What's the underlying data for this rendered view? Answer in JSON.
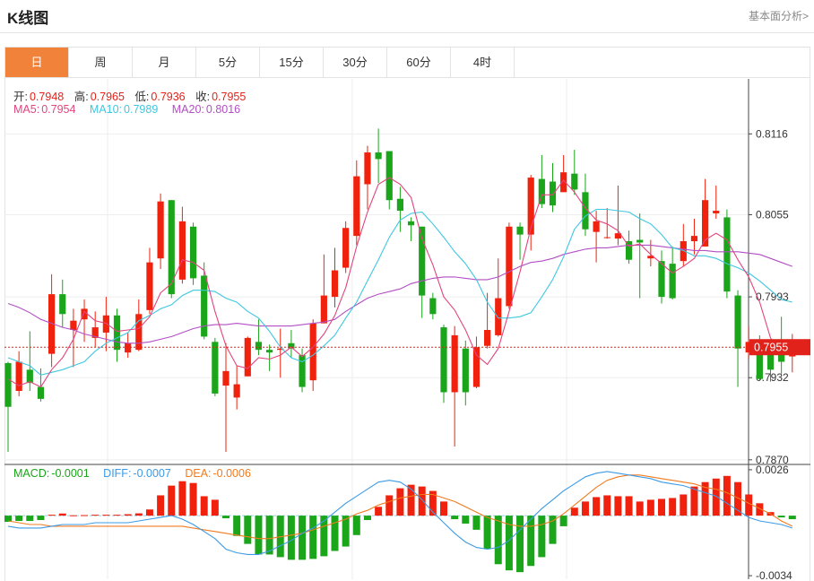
{
  "header": {
    "title": "K线图",
    "link": "基本面分析>"
  },
  "tabs": [
    "日",
    "周",
    "月",
    "5分",
    "15分",
    "30分",
    "60分",
    "4时"
  ],
  "active_tab": 0,
  "ohlc_legend": {
    "open_label": "开:",
    "open": "0.7948",
    "high_label": "高:",
    "high": "0.7965",
    "low_label": "低:",
    "low": "0.7936",
    "close_label": "收:",
    "close": "0.7955"
  },
  "ma_legend": {
    "ma5_label": "MA5:",
    "ma5": "0.7954",
    "ma10_label": "MA10:",
    "ma10": "0.7989",
    "ma20_label": "MA20:",
    "ma20": "0.8016"
  },
  "macd_legend": {
    "macd_label": "MACD:",
    "macd": "-0.0001",
    "diff_label": "DIFF:",
    "diff": "-0.0007",
    "dea_label": "DEA:",
    "dea": "-0.0006"
  },
  "colors": {
    "up": "#f0220e",
    "down": "#1aa51a",
    "ma5": "#e2457f",
    "ma10": "#3ec7e0",
    "ma20": "#b24fc4",
    "dea": "#f07b20",
    "diff": "#3c9be6",
    "accent": "#f0823a",
    "current": "#e0221a"
  },
  "chart_data": {
    "type": "candlestick",
    "price_axis": {
      "ticks": [
        0.8116,
        0.8055,
        0.7993,
        0.7932,
        0.787
      ],
      "ylim": [
        0.78665,
        0.81575
      ]
    },
    "current_price": 0.7955,
    "candles": [
      [
        0.7943,
        0.791,
        0.7944,
        0.7876
      ],
      [
        0.7922,
        0.7944,
        0.7952,
        0.7918
      ],
      [
        0.7938,
        0.7928,
        0.7967,
        0.7922
      ],
      [
        0.7925,
        0.7916,
        0.7939,
        0.7914
      ],
      [
        0.795,
        0.7995,
        0.801,
        0.794
      ],
      [
        0.7995,
        0.798,
        0.8006,
        0.797
      ],
      [
        0.7968,
        0.7975,
        0.7984,
        0.794
      ],
      [
        0.7976,
        0.7984,
        0.7991,
        0.7959
      ],
      [
        0.7962,
        0.797,
        0.7982,
        0.7955
      ],
      [
        0.7966,
        0.7979,
        0.7993,
        0.7952
      ],
      [
        0.7979,
        0.7953,
        0.7984,
        0.7944
      ],
      [
        0.7951,
        0.7958,
        0.7966,
        0.7947
      ],
      [
        0.7953,
        0.798,
        0.7991,
        0.7952
      ],
      [
        0.7983,
        0.8019,
        0.803,
        0.798
      ],
      [
        0.8022,
        0.8065,
        0.8071,
        0.8014
      ],
      [
        0.8066,
        0.7995,
        0.8066,
        0.7992
      ],
      [
        0.8006,
        0.805,
        0.8061,
        0.8003
      ],
      [
        0.8046,
        0.8007,
        0.8049,
        0.8002
      ],
      [
        0.8009,
        0.7963,
        0.8019,
        0.7961
      ],
      [
        0.7959,
        0.792,
        0.7962,
        0.7918
      ],
      [
        0.7926,
        0.7937,
        0.7958,
        0.7876
      ],
      [
        0.7917,
        0.7927,
        0.7941,
        0.7908
      ],
      [
        0.7933,
        0.7962,
        0.7963,
        0.7933
      ],
      [
        0.7959,
        0.7953,
        0.7976,
        0.7949
      ],
      [
        0.7953,
        0.7951,
        0.7957,
        0.7937
      ],
      [
        0.7953,
        0.7954,
        0.7969,
        0.7932
      ],
      [
        0.7958,
        0.7954,
        0.7968,
        0.7947
      ],
      [
        0.7949,
        0.7925,
        0.7954,
        0.7921
      ],
      [
        0.793,
        0.7973,
        0.7976,
        0.7922
      ],
      [
        0.7973,
        0.7994,
        0.8025,
        0.7973
      ],
      [
        0.7993,
        0.8013,
        0.803,
        0.7985
      ],
      [
        0.8015,
        0.8045,
        0.805,
        0.8011
      ],
      [
        0.8039,
        0.8084,
        0.8096,
        0.8032
      ],
      [
        0.8078,
        0.8102,
        0.8107,
        0.8059
      ],
      [
        0.8102,
        0.8097,
        0.812,
        0.8079
      ],
      [
        0.8103,
        0.8066,
        0.8103,
        0.8059
      ],
      [
        0.8067,
        0.8058,
        0.8076,
        0.8042
      ],
      [
        0.805,
        0.8047,
        0.8053,
        0.8035
      ],
      [
        0.8046,
        0.7994,
        0.8046,
        0.7977
      ],
      [
        0.7992,
        0.798,
        0.7996,
        0.7976
      ],
      [
        0.797,
        0.7921,
        0.7972,
        0.7913
      ],
      [
        0.7921,
        0.7964,
        0.7971,
        0.788
      ],
      [
        0.7954,
        0.7921,
        0.796,
        0.7911
      ],
      [
        0.7925,
        0.7955,
        0.7963,
        0.7924
      ],
      [
        0.7956,
        0.7968,
        0.7996,
        0.7954
      ],
      [
        0.7964,
        0.7992,
        0.8022,
        0.7963
      ],
      [
        0.7986,
        0.8046,
        0.8049,
        0.7984
      ],
      [
        0.8046,
        0.804,
        0.8049,
        0.8021
      ],
      [
        0.804,
        0.8083,
        0.8085,
        0.8028
      ],
      [
        0.8082,
        0.8063,
        0.81,
        0.806
      ],
      [
        0.808,
        0.8062,
        0.8094,
        0.8057
      ],
      [
        0.8072,
        0.8087,
        0.81,
        0.8073
      ],
      [
        0.8086,
        0.8074,
        0.8104,
        0.807
      ],
      [
        0.8072,
        0.8044,
        0.8086,
        0.8039
      ],
      [
        0.8042,
        0.805,
        0.8058,
        0.8019
      ],
      [
        0.8038,
        0.8038,
        0.806,
        0.8037
      ],
      [
        0.8037,
        0.8041,
        0.8077,
        0.8032
      ],
      [
        0.8035,
        0.8021,
        0.8043,
        0.8018
      ],
      [
        0.8036,
        0.8034,
        0.8056,
        0.7992
      ],
      [
        0.8022,
        0.8024,
        0.8036,
        0.8016
      ],
      [
        0.802,
        0.7993,
        0.8028,
        0.7988
      ],
      [
        0.8018,
        0.7992,
        0.8031,
        0.7991
      ],
      [
        0.802,
        0.8035,
        0.8048,
        0.8016
      ],
      [
        0.8035,
        0.8039,
        0.8052,
        0.8025
      ],
      [
        0.8031,
        0.8066,
        0.8082,
        0.8031
      ],
      [
        0.8056,
        0.8058,
        0.8077,
        0.8052
      ],
      [
        0.8053,
        0.7997,
        0.8059,
        0.7992
      ],
      [
        0.7994,
        0.7954,
        0.7998,
        0.7925
      ],
      [
        0.7951,
        0.7959,
        0.7971,
        0.7946
      ],
      [
        0.7953,
        0.7931,
        0.7964,
        0.793
      ],
      [
        0.796,
        0.7938,
        0.796,
        0.7929
      ],
      [
        0.7958,
        0.7944,
        0.7978,
        0.7935
      ],
      [
        0.7948,
        0.7955,
        0.7965,
        0.7936
      ]
    ],
    "ma5": [
      0.7931,
      0.7926,
      0.7929,
      0.7925,
      0.7938,
      0.7947,
      0.7961,
      0.7982,
      0.7975,
      0.7973,
      0.7967,
      0.7968,
      0.7969,
      0.7978,
      0.7996,
      0.8003,
      0.8021,
      0.8019,
      0.8013,
      0.7982,
      0.7956,
      0.7941,
      0.7939,
      0.7947,
      0.7946,
      0.7949,
      0.7955,
      0.7948,
      0.7955,
      0.7965,
      0.7979,
      0.8,
      0.8031,
      0.8057,
      0.8078,
      0.8083,
      0.8078,
      0.8068,
      0.8037,
      0.8017,
      0.7993,
      0.7983,
      0.7968,
      0.7949,
      0.7942,
      0.7954,
      0.7982,
      0.8012,
      0.8045,
      0.807,
      0.807,
      0.8081,
      0.8072,
      0.806,
      0.8051,
      0.8048,
      0.8043,
      0.8031,
      0.8033,
      0.8025,
      0.8018,
      0.8011,
      0.8016,
      0.8022,
      0.8036,
      0.8041,
      0.8036,
      0.8021,
      0.8008,
      0.7989,
      0.7962,
      0.795,
      0.7954
    ],
    "ma10": [
      0.7947,
      0.7944,
      0.7941,
      0.7934,
      0.7936,
      0.7938,
      0.7941,
      0.7944,
      0.7952,
      0.7958,
      0.7962,
      0.7966,
      0.7975,
      0.7979,
      0.7984,
      0.7987,
      0.7994,
      0.7998,
      0.7998,
      0.7997,
      0.7992,
      0.7989,
      0.7982,
      0.7977,
      0.7967,
      0.7955,
      0.7947,
      0.7944,
      0.7949,
      0.7956,
      0.7964,
      0.7977,
      0.7989,
      0.8005,
      0.8021,
      0.8038,
      0.8051,
      0.8056,
      0.8057,
      0.8048,
      0.8038,
      0.8027,
      0.8018,
      0.8006,
      0.7989,
      0.7977,
      0.7977,
      0.7978,
      0.7981,
      0.7993,
      0.8006,
      0.8023,
      0.8044,
      0.8054,
      0.8059,
      0.8059,
      0.8058,
      0.8057,
      0.8052,
      0.8048,
      0.804,
      0.803,
      0.8028,
      0.8024,
      0.8024,
      0.8022,
      0.8018,
      0.8015,
      0.8011,
      0.8005,
      0.7998,
      0.7991,
      0.7989
    ],
    "ma20": [
      0.7988,
      0.7985,
      0.7981,
      0.7976,
      0.7973,
      0.797,
      0.7968,
      0.7965,
      0.7963,
      0.7961,
      0.7959,
      0.7958,
      0.7958,
      0.7959,
      0.7961,
      0.7963,
      0.7966,
      0.7969,
      0.7971,
      0.7972,
      0.7972,
      0.7973,
      0.7972,
      0.7971,
      0.7971,
      0.7971,
      0.7971,
      0.7972,
      0.7973,
      0.7974,
      0.7976,
      0.7982,
      0.7987,
      0.7992,
      0.7995,
      0.7997,
      0.7999,
      0.8003,
      0.8005,
      0.8007,
      0.8008,
      0.8008,
      0.8007,
      0.8006,
      0.8006,
      0.8008,
      0.8012,
      0.8016,
      0.8019,
      0.802,
      0.8022,
      0.8025,
      0.8027,
      0.8029,
      0.803,
      0.803,
      0.8031,
      0.8032,
      0.8032,
      0.8032,
      0.8031,
      0.803,
      0.8029,
      0.8028,
      0.8028,
      0.8027,
      0.8027,
      0.8027,
      0.8026,
      0.8025,
      0.8022,
      0.8019,
      0.8016
    ],
    "macd_axis": {
      "ticks": [
        0.0026,
        -0.0034
      ],
      "ylim": [
        -0.0036,
        0.0029
      ]
    },
    "macd_hist": [
      -0.00035,
      -0.0003,
      -0.0003,
      -0.00025,
      5e-05,
      0.00012,
      2e-05,
      3e-05,
      5e-05,
      5e-05,
      5e-05,
      8e-05,
      0.00013,
      0.00035,
      0.00115,
      0.0017,
      0.00195,
      0.00185,
      0.0011,
      0.0009,
      -0.00015,
      -0.00115,
      -0.0016,
      -0.0022,
      -0.0022,
      -0.00235,
      -0.0025,
      -0.0025,
      -0.00245,
      -0.0023,
      -0.002,
      -0.00175,
      -0.0011,
      -0.00025,
      0.0005,
      0.00115,
      0.00155,
      0.00175,
      0.00165,
      0.0014,
      0.0008,
      -0.0002,
      -0.00045,
      -0.0008,
      -0.0019,
      -0.00275,
      -0.0031,
      -0.0032,
      -0.00285,
      -0.00235,
      -0.0016,
      -0.0006,
      0.00045,
      0.0008,
      0.00105,
      0.00115,
      0.0011,
      0.0011,
      0.0008,
      0.0009,
      0.00095,
      0.001,
      0.0012,
      0.00165,
      0.0019,
      0.0021,
      0.00225,
      0.0019,
      0.0012,
      0.0007,
      0.0002,
      -0.0001,
      -0.0002
    ],
    "diff": [
      -0.0006,
      -0.0007,
      -0.0007,
      -0.0007,
      -0.0006,
      -0.0005,
      -0.0005,
      -0.0005,
      -0.0004,
      -0.0004,
      -0.0004,
      -0.0004,
      -0.0003,
      -0.0002,
      -0.0001,
      0.0,
      -0.0002,
      -0.0005,
      -0.0009,
      -0.0013,
      -0.0019,
      -0.0021,
      -0.0022,
      -0.0022,
      -0.002,
      -0.0017,
      -0.0014,
      -0.001,
      -0.0007,
      -0.0003,
      0.0002,
      0.0007,
      0.0011,
      0.0015,
      0.0019,
      0.002,
      0.0019,
      0.0015,
      0.0009,
      0.0002,
      -0.0004,
      -0.001,
      -0.0015,
      -0.0018,
      -0.0019,
      -0.0018,
      -0.0014,
      -0.0008,
      -0.0002,
      0.0004,
      0.0009,
      0.0014,
      0.0018,
      0.0022,
      0.0024,
      0.0025,
      0.0024,
      0.0023,
      0.0022,
      0.0021,
      0.0019,
      0.0018,
      0.0017,
      0.0015,
      0.0013,
      0.0011,
      0.0007,
      0.0003,
      -0.0001,
      -0.0003,
      -0.0004,
      -0.0005,
      -0.0007
    ],
    "dea": [
      -0.0003,
      -0.0004,
      -0.0005,
      -0.0005,
      -0.0006,
      -0.0006,
      -0.0006,
      -0.0006,
      -0.0006,
      -0.0006,
      -0.0006,
      -0.0006,
      -0.0006,
      -0.0006,
      -0.0006,
      -0.0006,
      -0.0006,
      -0.0007,
      -0.0008,
      -0.0009,
      -0.001,
      -0.0011,
      -0.0012,
      -0.0013,
      -0.0013,
      -0.0012,
      -0.0011,
      -0.001,
      -0.0008,
      -0.0006,
      -0.0004,
      -0.0002,
      0.0001,
      0.0003,
      0.0006,
      0.0008,
      0.001,
      0.0011,
      0.0012,
      0.0012,
      0.001,
      0.0008,
      0.0005,
      0.0002,
      -0.0001,
      -0.0003,
      -0.0005,
      -0.0006,
      -0.0006,
      -0.0005,
      -0.0003,
      0.0001,
      0.0006,
      0.0011,
      0.0016,
      0.002,
      0.0022,
      0.0023,
      0.0023,
      0.0022,
      0.0021,
      0.002,
      0.0019,
      0.0018,
      0.0016,
      0.0015,
      0.0013,
      0.001,
      0.0007,
      0.0004,
      0.0001,
      -0.0003,
      -0.0006
    ]
  }
}
